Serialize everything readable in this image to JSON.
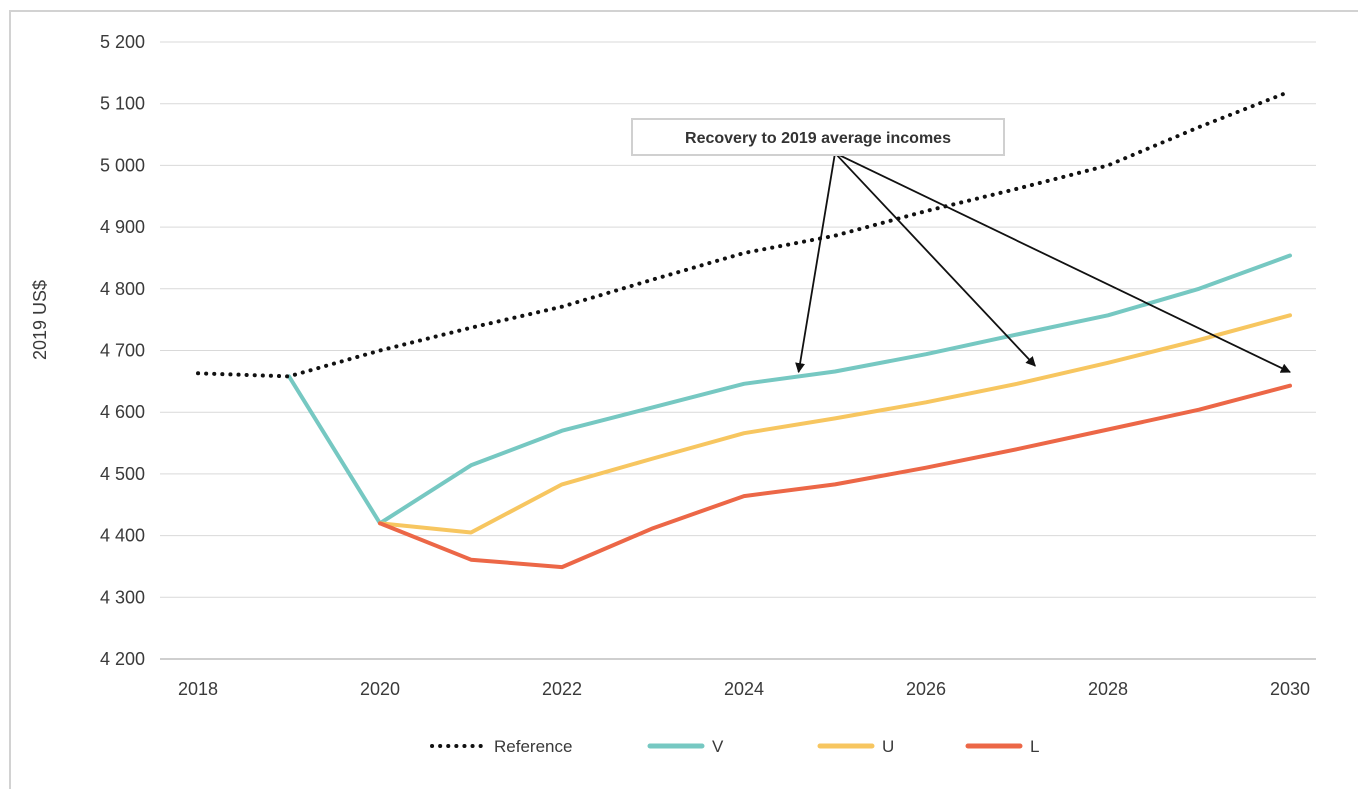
{
  "chart_data": {
    "type": "line",
    "title": "",
    "xlabel": "",
    "ylabel": "2019 US$",
    "xlim": [
      2018,
      2030
    ],
    "ylim": [
      4200,
      5200
    ],
    "x_ticks": [
      2018,
      2020,
      2022,
      2024,
      2026,
      2028,
      2030
    ],
    "x_tick_labels": [
      "2018",
      "2020",
      "2022",
      "2024",
      "2026",
      "2028",
      "2030"
    ],
    "y_ticks": [
      4200,
      4300,
      4400,
      4500,
      4600,
      4700,
      4800,
      4900,
      5000,
      5100,
      5200
    ],
    "y_tick_labels": [
      "4 200",
      "4 300",
      "4 400",
      "4 500",
      "4 600",
      "4 700",
      "4 800",
      "4 900",
      "5 000",
      "5 100",
      "5 200"
    ],
    "grid": "horizontal",
    "legend_position": "bottom",
    "series": [
      {
        "name": "Reference",
        "color": "#111111",
        "style": "dotted",
        "x": [
          2018,
          2019,
          2020,
          2021,
          2022,
          2023,
          2024,
          2025,
          2026,
          2027,
          2028,
          2029,
          2030
        ],
        "values": [
          4663,
          4658,
          4700,
          4737,
          4771,
          4815,
          4858,
          4886,
          4926,
          4962,
          5000,
          5062,
          5120
        ]
      },
      {
        "name": "V",
        "color": "#76c8c2",
        "style": "solid",
        "x": [
          2019,
          2020,
          2021,
          2022,
          2023,
          2024,
          2025,
          2026,
          2027,
          2028,
          2029,
          2030
        ],
        "values": [
          4658,
          4420,
          4514,
          4570,
          4608,
          4646,
          4666,
          4694,
          4726,
          4757,
          4800,
          4854
        ]
      },
      {
        "name": "U",
        "color": "#f7c660",
        "style": "solid",
        "x": [
          2020,
          2021,
          2022,
          2023,
          2024,
          2025,
          2026,
          2027,
          2028,
          2029,
          2030
        ],
        "values": [
          4420,
          4405,
          4483,
          4525,
          4566,
          4590,
          4616,
          4646,
          4680,
          4717,
          4757
        ]
      },
      {
        "name": "L",
        "color": "#ec6747",
        "style": "solid",
        "x": [
          2020,
          2021,
          2022,
          2023,
          2024,
          2025,
          2026,
          2027,
          2028,
          2029,
          2030
        ],
        "values": [
          4420,
          4361,
          4349,
          4412,
          4464,
          4483,
          4510,
          4540,
          4572,
          4604,
          4643
        ]
      }
    ],
    "annotation": {
      "text": "Recovery to 2019 average incomes",
      "origin": [
        2025.0,
        5020
      ],
      "targets": [
        [
          2024.6,
          4665
        ],
        [
          2027.2,
          4675
        ],
        [
          2030.0,
          4665
        ]
      ]
    }
  }
}
